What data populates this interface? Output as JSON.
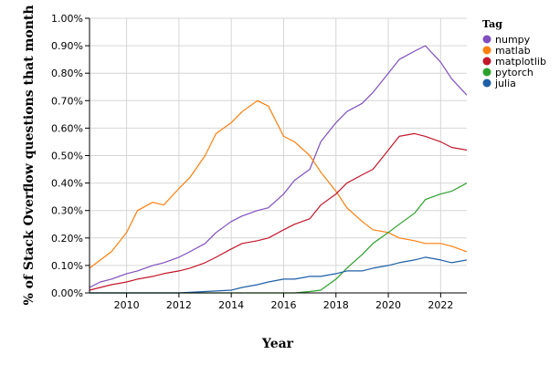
{
  "chart_data": {
    "type": "line",
    "title": "",
    "xlabel": "Year",
    "ylabel": "% of Stack Overflow questions that month",
    "xlim": [
      "2008-08",
      "2023-01"
    ],
    "ylim": [
      0,
      1.0
    ],
    "grid": true,
    "legend": {
      "title": "Tag",
      "placement": "right"
    },
    "x_ticks": [
      "2010",
      "2012",
      "2014",
      "2016",
      "2018",
      "2020",
      "2022"
    ],
    "y_ticks": [
      "0.00%",
      "0.10%",
      "0.20%",
      "0.30%",
      "0.40%",
      "0.50%",
      "0.60%",
      "0.70%",
      "0.80%",
      "0.90%",
      "1.00%"
    ],
    "series": [
      {
        "name": "numpy",
        "color": "#7f4fbf",
        "points": [
          [
            "2008-08",
            0.02
          ],
          [
            "2009-01",
            0.04
          ],
          [
            "2009-06",
            0.05
          ],
          [
            "2010-01",
            0.07
          ],
          [
            "2010-06",
            0.08
          ],
          [
            "2011-01",
            0.1
          ],
          [
            "2011-06",
            0.11
          ],
          [
            "2012-01",
            0.13
          ],
          [
            "2012-06",
            0.15
          ],
          [
            "2013-01",
            0.18
          ],
          [
            "2013-06",
            0.22
          ],
          [
            "2014-01",
            0.26
          ],
          [
            "2014-06",
            0.28
          ],
          [
            "2015-01",
            0.3
          ],
          [
            "2015-06",
            0.31
          ],
          [
            "2016-01",
            0.36
          ],
          [
            "2016-06",
            0.41
          ],
          [
            "2017-01",
            0.45
          ],
          [
            "2017-06",
            0.55
          ],
          [
            "2018-01",
            0.62
          ],
          [
            "2018-06",
            0.66
          ],
          [
            "2019-01",
            0.69
          ],
          [
            "2019-06",
            0.73
          ],
          [
            "2020-01",
            0.8
          ],
          [
            "2020-06",
            0.85
          ],
          [
            "2021-01",
            0.88
          ],
          [
            "2021-06",
            0.9
          ],
          [
            "2022-01",
            0.84
          ],
          [
            "2022-06",
            0.78
          ],
          [
            "2023-01",
            0.72
          ]
        ]
      },
      {
        "name": "matlab",
        "color": "#ff7f0e",
        "points": [
          [
            "2008-08",
            0.09
          ],
          [
            "2009-01",
            0.12
          ],
          [
            "2009-06",
            0.15
          ],
          [
            "2010-01",
            0.22
          ],
          [
            "2010-06",
            0.3
          ],
          [
            "2011-01",
            0.33
          ],
          [
            "2011-06",
            0.32
          ],
          [
            "2012-01",
            0.38
          ],
          [
            "2012-06",
            0.42
          ],
          [
            "2013-01",
            0.5
          ],
          [
            "2013-06",
            0.58
          ],
          [
            "2014-01",
            0.62
          ],
          [
            "2014-06",
            0.66
          ],
          [
            "2015-01",
            0.7
          ],
          [
            "2015-06",
            0.68
          ],
          [
            "2016-01",
            0.57
          ],
          [
            "2016-06",
            0.55
          ],
          [
            "2017-01",
            0.5
          ],
          [
            "2017-06",
            0.44
          ],
          [
            "2018-01",
            0.37
          ],
          [
            "2018-06",
            0.31
          ],
          [
            "2019-01",
            0.26
          ],
          [
            "2019-06",
            0.23
          ],
          [
            "2020-01",
            0.22
          ],
          [
            "2020-06",
            0.2
          ],
          [
            "2021-01",
            0.19
          ],
          [
            "2021-06",
            0.18
          ],
          [
            "2022-01",
            0.18
          ],
          [
            "2022-06",
            0.17
          ],
          [
            "2023-01",
            0.15
          ]
        ]
      },
      {
        "name": "matplotlib",
        "color": "#c3172b",
        "points": [
          [
            "2008-08",
            0.01
          ],
          [
            "2009-01",
            0.02
          ],
          [
            "2009-06",
            0.03
          ],
          [
            "2010-01",
            0.04
          ],
          [
            "2010-06",
            0.05
          ],
          [
            "2011-01",
            0.06
          ],
          [
            "2011-06",
            0.07
          ],
          [
            "2012-01",
            0.08
          ],
          [
            "2012-06",
            0.09
          ],
          [
            "2013-01",
            0.11
          ],
          [
            "2013-06",
            0.13
          ],
          [
            "2014-01",
            0.16
          ],
          [
            "2014-06",
            0.18
          ],
          [
            "2015-01",
            0.19
          ],
          [
            "2015-06",
            0.2
          ],
          [
            "2016-01",
            0.23
          ],
          [
            "2016-06",
            0.25
          ],
          [
            "2017-01",
            0.27
          ],
          [
            "2017-06",
            0.32
          ],
          [
            "2018-01",
            0.36
          ],
          [
            "2018-06",
            0.4
          ],
          [
            "2019-01",
            0.43
          ],
          [
            "2019-06",
            0.45
          ],
          [
            "2020-01",
            0.52
          ],
          [
            "2020-06",
            0.57
          ],
          [
            "2021-01",
            0.58
          ],
          [
            "2021-06",
            0.57
          ],
          [
            "2022-01",
            0.55
          ],
          [
            "2022-06",
            0.53
          ],
          [
            "2023-01",
            0.52
          ]
        ]
      },
      {
        "name": "pytorch",
        "color": "#2ca02c",
        "points": [
          [
            "2008-08",
            0.0
          ],
          [
            "2016-06",
            0.0
          ],
          [
            "2017-01",
            0.005
          ],
          [
            "2017-06",
            0.01
          ],
          [
            "2018-01",
            0.05
          ],
          [
            "2018-06",
            0.09
          ],
          [
            "2019-01",
            0.14
          ],
          [
            "2019-06",
            0.18
          ],
          [
            "2020-01",
            0.22
          ],
          [
            "2020-06",
            0.25
          ],
          [
            "2021-01",
            0.29
          ],
          [
            "2021-06",
            0.34
          ],
          [
            "2022-01",
            0.36
          ],
          [
            "2022-06",
            0.37
          ],
          [
            "2023-01",
            0.4
          ]
        ]
      },
      {
        "name": "julia",
        "color": "#1f5fa8",
        "points": [
          [
            "2008-08",
            0.0
          ],
          [
            "2012-01",
            0.0
          ],
          [
            "2013-01",
            0.005
          ],
          [
            "2014-01",
            0.01
          ],
          [
            "2014-06",
            0.02
          ],
          [
            "2015-01",
            0.03
          ],
          [
            "2015-06",
            0.04
          ],
          [
            "2016-01",
            0.05
          ],
          [
            "2016-06",
            0.05
          ],
          [
            "2017-01",
            0.06
          ],
          [
            "2017-06",
            0.06
          ],
          [
            "2018-01",
            0.07
          ],
          [
            "2018-06",
            0.08
          ],
          [
            "2019-01",
            0.08
          ],
          [
            "2019-06",
            0.09
          ],
          [
            "2020-01",
            0.1
          ],
          [
            "2020-06",
            0.11
          ],
          [
            "2021-01",
            0.12
          ],
          [
            "2021-06",
            0.13
          ],
          [
            "2022-01",
            0.12
          ],
          [
            "2022-06",
            0.11
          ],
          [
            "2023-01",
            0.12
          ]
        ]
      }
    ]
  }
}
